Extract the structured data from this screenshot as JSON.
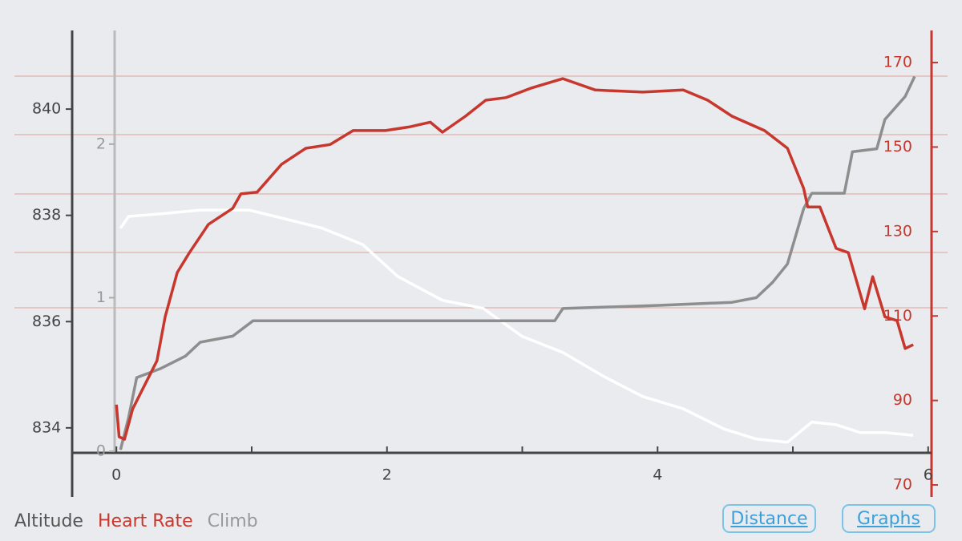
{
  "chart_data": {
    "type": "line",
    "x": null,
    "xlim": [
      -0.3271,
      6.0131
    ],
    "xticks": [
      0,
      2,
      4,
      6
    ],
    "xminorticks": [
      1,
      3,
      5
    ],
    "ylim": [
      833.53,
      841.48
    ],
    "yticks": [
      834,
      836,
      838,
      840
    ],
    "y2lim": [
      77.6,
      177.6
    ],
    "y2ticks": [
      70,
      90,
      110,
      130,
      150,
      170
    ],
    "y3lim": [
      -0.01,
      2.74
    ],
    "y3ticks": [
      0,
      1,
      2
    ],
    "series": [
      {
        "name": "Altitude",
        "color": "#ffffff",
        "axis": "y",
        "x": [
          0.03,
          0.09,
          0.33,
          0.62,
          0.98,
          1.22,
          1.52,
          1.82,
          2.08,
          2.41,
          2.71,
          3.0,
          3.3,
          3.6,
          3.89,
          4.19,
          4.49,
          4.73,
          4.96,
          5.14,
          5.32,
          5.5,
          5.68,
          5.89
        ],
        "values": [
          837.76,
          837.98,
          838.03,
          838.1,
          838.1,
          837.95,
          837.76,
          837.45,
          836.85,
          836.4,
          836.25,
          835.72,
          835.42,
          834.97,
          834.59,
          834.36,
          833.98,
          833.79,
          833.73,
          834.11,
          834.06,
          833.91,
          833.91,
          833.86
        ]
      },
      {
        "name": "Heart Rate",
        "color": "#c8372d",
        "axis": "y2",
        "x": [
          0,
          0.02,
          0.06,
          0.12,
          0.21,
          0.3,
          0.36,
          0.45,
          0.54,
          0.68,
          0.86,
          0.92,
          1.04,
          1.22,
          1.4,
          1.58,
          1.75,
          1.99,
          2.17,
          2.32,
          2.41,
          2.58,
          2.73,
          2.88,
          3.06,
          3.3,
          3.54,
          3.89,
          4.19,
          4.37,
          4.55,
          4.79,
          4.96,
          5.08,
          5.11,
          5.2,
          5.32,
          5.41,
          5.53,
          5.59,
          5.68,
          5.77,
          5.83,
          5.89
        ],
        "values": [
          89.0,
          81.4,
          80.8,
          88.0,
          93.7,
          99.4,
          109.8,
          120.3,
          125.0,
          131.7,
          135.5,
          138.9,
          139.3,
          145.9,
          149.7,
          150.6,
          153.9,
          153.9,
          154.8,
          155.9,
          153.5,
          157.3,
          161.1,
          161.7,
          163.9,
          166.2,
          163.5,
          163.0,
          163.5,
          161.1,
          157.3,
          153.9,
          149.7,
          140.2,
          135.8,
          135.8,
          126.0,
          125.0,
          111.7,
          119.3,
          109.8,
          108.9,
          102.3,
          103.2
        ]
      },
      {
        "name": "Climb",
        "color": "#8e8e8e",
        "axis": "y3",
        "x": [
          0.03,
          0.09,
          0.15,
          0.33,
          0.51,
          0.62,
          0.86,
          1.01,
          3.24,
          3.3,
          4.01,
          4.55,
          4.73,
          4.85,
          4.96,
          5.08,
          5.14,
          5.38,
          5.44,
          5.62,
          5.68,
          5.83,
          5.9
        ],
        "values": [
          0.01,
          0.22,
          0.48,
          0.54,
          0.62,
          0.71,
          0.75,
          0.85,
          0.85,
          0.93,
          0.95,
          0.97,
          1.0,
          1.1,
          1.22,
          1.58,
          1.68,
          1.68,
          1.95,
          1.97,
          2.16,
          2.31,
          2.44
        ]
      }
    ]
  },
  "buttons": [
    "Distance",
    "Graphs"
  ]
}
